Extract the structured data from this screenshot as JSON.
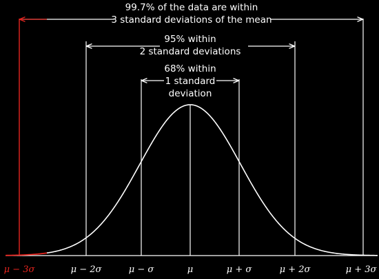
{
  "annotations": {
    "sigma3_line1": "99.7% of the data are within",
    "sigma3_line2": "3 standard deviations of the mean",
    "sigma2_line1": "95% within",
    "sigma2_line2": "2 standard deviations",
    "sigma1_line1": "68% within",
    "sigma1_line2": "1 standard",
    "sigma1_line3": "deviation"
  },
  "axis_labels": {
    "minus3": "μ − 3σ",
    "minus2": "μ − 2σ",
    "minus1": "μ − σ",
    "mean": "μ",
    "plus1": "μ + σ",
    "plus2": "μ + 2σ",
    "plus3": "μ + 3σ"
  },
  "colors": {
    "background": "#000000",
    "foreground": "#ffffff",
    "highlight": "#e8251f"
  }
}
